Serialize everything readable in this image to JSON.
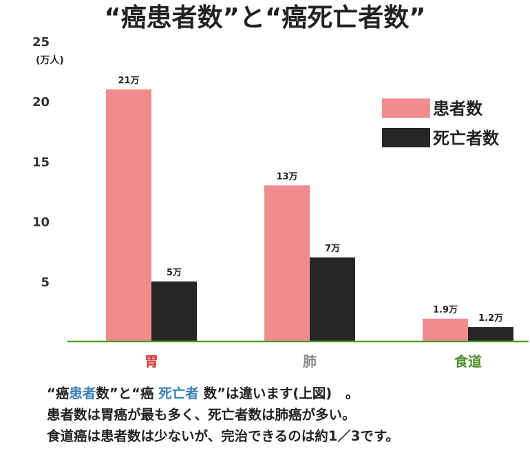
{
  "chart_data": {
    "type": "bar",
    "title": "“癌患者数”と“癌死亡者数”",
    "y_unit": "(万人)",
    "categories": [
      "胃",
      "肺",
      "食道"
    ],
    "category_colors": [
      "#d23c3c",
      "#8a8a8a",
      "#4f8f2a"
    ],
    "series": [
      {
        "name": "患者数",
        "color": "#f08c8e",
        "values": [
          21,
          13,
          1.9
        ],
        "labels": [
          "21万",
          "13万",
          "1.9万"
        ]
      },
      {
        "name": "死亡者数",
        "color": "#262626",
        "values": [
          5,
          7,
          1.2
        ],
        "labels": [
          "5万",
          "7万",
          "1.2万"
        ]
      }
    ],
    "ylim": [
      0,
      25
    ],
    "yticks": [
      "5",
      "10",
      "15",
      "20",
      "25"
    ],
    "axis_color": "#5a9a2a",
    "legend_position": "top-right",
    "grid": false
  },
  "caption": {
    "line1": {
      "p1": "“癌",
      "p2": "患者",
      "p3": "数”と“癌 ",
      "p4": "死亡者",
      "p5": " 数”は違います(上図)　。"
    },
    "line2": "患者数は胃癌が最も多く、死亡者数は肺癌が多い。",
    "line3": "食道癌は患者数は少ないが、完治できるのは約1／3です。"
  }
}
